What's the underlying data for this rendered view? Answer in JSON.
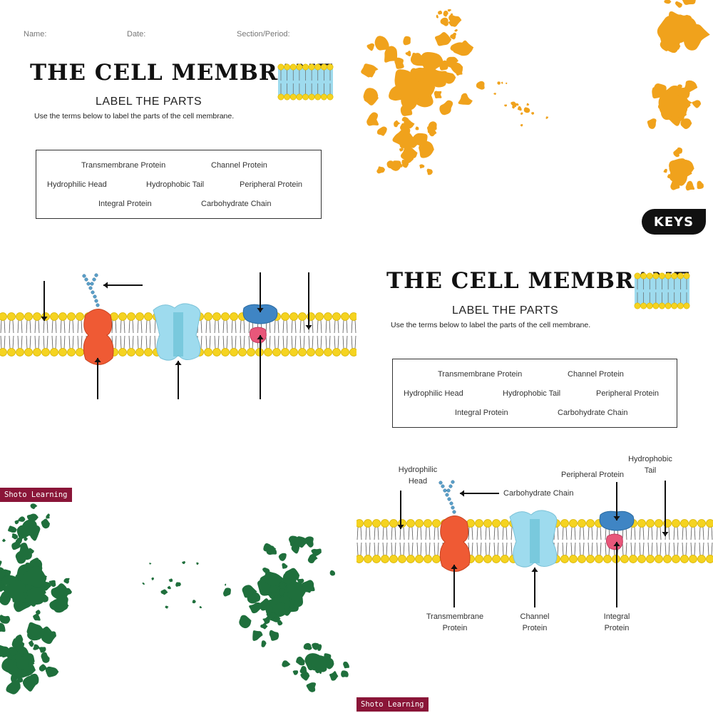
{
  "worksheet": {
    "name_label": "Name:",
    "date_label": "Date:",
    "section_label": "Section/Period:",
    "title": "THE CELL MEMBRANE",
    "subtitle": "LABEL THE PARTS",
    "instructions": "Use the terms below to label the parts of the cell membrane.",
    "terms": [
      "Transmembrane Protein",
      "Channel Protein",
      "Hydrophilic Head",
      "Hydrophobic Tail",
      "Peripheral Protein",
      "Integral Protein",
      "Carbohydrate Chain"
    ]
  },
  "key": {
    "badge": "KEYS",
    "labels": {
      "hydrophilic_head": "Hydrophilic\nHead",
      "carbohydrate_chain": "Carbohydrate Chain",
      "peripheral_protein": "Peripheral Protein",
      "hydrophobic_tail": "Hydrophobic\nTail",
      "transmembrane_protein": "Transmembrane\nProtein",
      "channel_protein": "Channel\nProtein",
      "integral_protein": "Integral\nProtein"
    }
  },
  "brand": "Shoto Learning",
  "colors": {
    "head_yellow": "#f5d320",
    "head_outline": "#d8b400",
    "transmembrane_red": "#ef5a34",
    "channel_blue": "#9edbee",
    "peripheral_blue": "#3f85c4",
    "integral_pink": "#e8577a",
    "carb_blue": "#5a9fc8",
    "orange_splash": "#f0a21c",
    "green_splash": "#1f6f3c",
    "brand_red": "#8a1538"
  }
}
